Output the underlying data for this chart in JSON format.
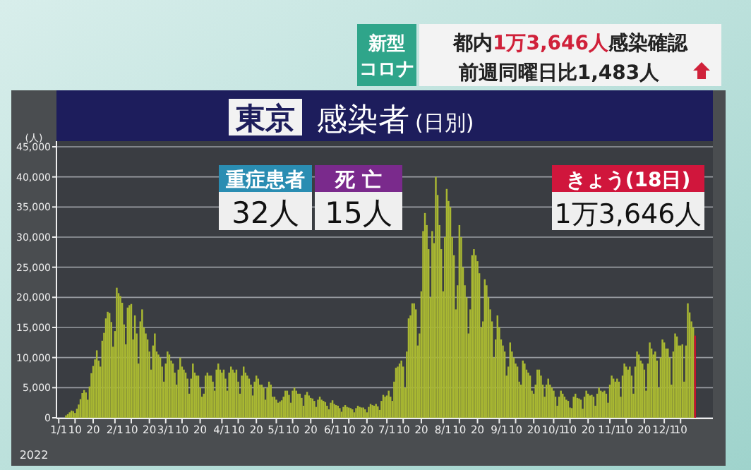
{
  "chart_data": {
    "type": "bar",
    "title": "東京 感染者 (日別)",
    "ylabel": "(人)",
    "xlabel": "2022",
    "grid": "y",
    "ylim": [
      0,
      45000
    ],
    "yticks": [
      0,
      {
        "value": 5000,
        "label": "5,000"
      },
      {
        "value": 10000,
        "label": "10,000"
      },
      {
        "value": 15000,
        "label": "15,000"
      },
      {
        "value": 20000,
        "label": "20,000"
      },
      {
        "value": 25000,
        "label": "25,000"
      },
      {
        "value": 30000,
        "label": "30,000"
      },
      {
        "value": 35000,
        "label": "35,000"
      },
      {
        "value": 40000,
        "label": "40,000"
      },
      {
        "value": 45000,
        "label": "45,000"
      }
    ],
    "annotations": [
      "新型",
      "コロナ",
      "都内1万3,646人感染確認",
      "前週同曜日比1,483人",
      "重症患者",
      "32人",
      "死 亡",
      "15人",
      "きょう(18日)",
      "1万3,646人"
    ],
    "categories": [
      "1/1",
      null,
      null,
      null,
      null,
      null,
      null,
      null,
      null,
      "10",
      null,
      null,
      null,
      null,
      null,
      null,
      null,
      null,
      null,
      "20",
      null,
      null,
      null,
      null,
      null,
      null,
      null,
      null,
      null,
      null,
      null,
      "2/1",
      null,
      null,
      null,
      null,
      null,
      null,
      null,
      null,
      "10",
      null,
      null,
      null,
      null,
      null,
      null,
      null,
      null,
      null,
      "20",
      null,
      null,
      null,
      null,
      null,
      null,
      null,
      null,
      "3/1",
      null,
      null,
      null,
      null,
      null,
      null,
      null,
      null,
      "10",
      null,
      null,
      null,
      null,
      null,
      null,
      null,
      null,
      null,
      "20",
      null,
      null,
      null,
      null,
      null,
      null,
      null,
      null,
      null,
      null,
      null,
      "4/1",
      null,
      null,
      null,
      null,
      null,
      null,
      null,
      null,
      "10",
      null,
      null,
      null,
      null,
      null,
      null,
      null,
      null,
      null,
      "20",
      null,
      null,
      null,
      null,
      null,
      null,
      null,
      null,
      null,
      null,
      "5/1",
      null,
      null,
      null,
      null,
      null,
      null,
      null,
      null,
      "10",
      null,
      null,
      null,
      null,
      null,
      null,
      null,
      null,
      null,
      "20",
      null,
      null,
      null,
      null,
      null,
      null,
      null,
      null,
      null,
      null,
      null,
      "6/1",
      null,
      null,
      null,
      null,
      null,
      null,
      null,
      null,
      "10",
      null,
      null,
      null,
      null,
      null,
      null,
      null,
      null,
      null,
      "20",
      null,
      null,
      null,
      null,
      null,
      null,
      null,
      null,
      null,
      null,
      "7/1",
      null,
      null,
      null,
      null,
      null,
      null,
      null,
      null,
      "10",
      null,
      null,
      null,
      null,
      null,
      null,
      null,
      null,
      null,
      "20",
      null,
      null,
      null,
      null,
      null,
      null,
      null,
      null,
      null,
      null,
      null,
      "8/1",
      null,
      null,
      null,
      null,
      null,
      null,
      null,
      null,
      "10",
      null,
      null,
      null,
      null,
      null,
      null,
      null,
      null,
      null,
      "20",
      null,
      null,
      null,
      null,
      null,
      null,
      null,
      null,
      null,
      null,
      null,
      "9/1",
      null,
      null,
      null,
      null,
      null,
      null,
      null,
      null,
      "10",
      null,
      null,
      null,
      null,
      null,
      null,
      null,
      null,
      null,
      "20",
      null,
      null,
      null,
      null,
      null,
      null,
      null,
      null,
      null,
      null,
      "10/1",
      null,
      null,
      null,
      null,
      null,
      null,
      null,
      null,
      "10",
      null,
      null,
      null,
      null,
      null,
      null,
      null,
      null,
      null,
      "20",
      null,
      null,
      null,
      null,
      null,
      null,
      null,
      null,
      null,
      null,
      null,
      "11/1",
      null,
      null,
      null,
      null,
      null,
      null,
      null,
      null,
      "10",
      null,
      null,
      null,
      null,
      null,
      null,
      null,
      null,
      null,
      "20",
      null,
      null,
      null,
      null,
      null,
      null,
      null,
      null,
      null,
      null,
      "12/1",
      null,
      null,
      null,
      null,
      null,
      null,
      null,
      null,
      "10",
      null,
      null,
      null,
      null,
      null,
      null,
      null,
      null
    ],
    "series": [
      {
        "color": "#a9b832",
        "values": [
          null,
          null,
          null,
          null,
          400,
          600,
          900,
          1200,
          1100,
          800,
          1500,
          2200,
          3100,
          4100,
          4600,
          4200,
          3000,
          5200,
          7400,
          8600,
          9700,
          11200,
          9500,
          8500,
          12800,
          14100,
          16500,
          17600,
          17400,
          15900,
          11800,
          14400,
          21600,
          20700,
          20200,
          19100,
          15500,
          12200,
          18300,
          18700,
          18900,
          13000,
          17000,
          14000,
          9000,
          16000,
          18000,
          15000,
          14000,
          13000,
          11000,
          8000,
          12000,
          14000,
          11000,
          10500,
          10000,
          8500,
          6000,
          9000,
          11000,
          10500,
          9500,
          9000,
          7500,
          5500,
          8000,
          10000,
          8500,
          8000,
          7500,
          6500,
          4000,
          6500,
          9000,
          7500,
          7000,
          7000,
          5000,
          3500,
          4000,
          7000,
          7500,
          7000,
          7000,
          6000,
          4500,
          8000,
          9000,
          8000,
          7500,
          8000,
          6500,
          4500,
          7500,
          8500,
          8000,
          7500,
          8000,
          6000,
          4000,
          7000,
          8500,
          7500,
          7000,
          6500,
          5500,
          3700,
          6000,
          7000,
          6500,
          5500,
          5500,
          5000,
          3000,
          5000,
          6000,
          5500,
          3500,
          3500,
          3000,
          2500,
          2700,
          2900,
          3500,
          4500,
          4500,
          3800,
          2500,
          4500,
          5000,
          4500,
          4000,
          4000,
          3300,
          2000,
          3800,
          4300,
          3700,
          3300,
          3200,
          2800,
          1800,
          3000,
          3500,
          3000,
          2800,
          2600,
          2000,
          1400,
          2500,
          2900,
          2300,
          2100,
          2000,
          1600,
          1000,
          1800,
          2100,
          1800,
          1700,
          1600,
          1400,
          900,
          1600,
          2000,
          1800,
          1700,
          1700,
          1400,
          900,
          1800,
          2300,
          2100,
          2000,
          2300,
          1900,
          1300,
          2800,
          3800,
          3500,
          3700,
          4500,
          3500,
          2800,
          6000,
          8300,
          8500,
          9000,
          9500,
          8500,
          5000,
          11000,
          16500,
          17000,
          19000,
          19000,
          18000,
          12000,
          14000,
          21000,
          31000,
          34000,
          32000,
          28000,
          20000,
          31000,
          29000,
          40000,
          37000,
          32000,
          28000,
          21000,
          30000,
          38000,
          36000,
          35000,
          30000,
          27000,
          18000,
          22000,
          32000,
          30000,
          25000,
          22000,
          20000,
          14000,
          18000,
          27000,
          28000,
          27000,
          26000,
          24000,
          15000,
          16000,
          23000,
          22000,
          20000,
          18000,
          16000,
          10000,
          13000,
          17000,
          15000,
          13000,
          12000,
          11000,
          7000,
          8500,
          12500,
          11000,
          10000,
          9000,
          8500,
          6000,
          5500,
          9500,
          9000,
          8000,
          7500,
          7000,
          4500,
          4000,
          5500,
          8000,
          8000,
          7000,
          5500,
          3500,
          5500,
          6500,
          5500,
          5000,
          4500,
          3500,
          2000,
          3500,
          4500,
          4000,
          3500,
          3000,
          2800,
          1700,
          1600,
          3500,
          4000,
          3300,
          3200,
          3000,
          1500,
          3500,
          4500,
          4000,
          3700,
          3800,
          3500,
          2000,
          4000,
          5000,
          4500,
          4300,
          4500,
          4000,
          2500,
          5500,
          7000,
          6500,
          6000,
          6500,
          6000,
          3500,
          7000,
          9000,
          8500,
          8000,
          8500,
          7000,
          4000,
          8500,
          11000,
          10500,
          9500,
          9000,
          8000,
          4500,
          9000,
          12500,
          11500,
          10500,
          11000,
          9500,
          5000,
          10000,
          13000,
          12500,
          11500,
          11500,
          10000,
          5500,
          11000,
          14000,
          13500,
          12000,
          12000,
          12200,
          6000,
          12000,
          19000,
          17500,
          16000,
          15000,
          null
        ]
      },
      {
        "color": "#c8102e",
        "values": [
          null,
          null,
          null,
          null,
          null,
          null,
          null,
          null,
          null,
          null,
          null,
          null,
          null,
          null,
          null,
          null,
          null,
          null,
          null,
          null,
          null,
          null,
          null,
          null,
          null,
          null,
          null,
          null,
          null,
          null,
          null,
          null,
          null,
          null,
          null,
          null,
          null,
          null,
          null,
          null,
          null,
          null,
          null,
          null,
          null,
          null,
          null,
          null,
          null,
          null,
          null,
          null,
          null,
          null,
          null,
          null,
          null,
          null,
          null,
          null,
          null,
          null,
          null,
          null,
          null,
          null,
          null,
          null,
          null,
          null,
          null,
          null,
          null,
          null,
          null,
          null,
          null,
          null,
          null,
          null,
          null,
          null,
          null,
          null,
          null,
          null,
          null,
          null,
          null,
          null,
          null,
          null,
          null,
          null,
          null,
          null,
          null,
          null,
          null,
          null,
          null,
          null,
          null,
          null,
          null,
          null,
          null,
          null,
          null,
          null,
          null,
          null,
          null,
          null,
          null,
          null,
          null,
          null,
          null,
          null,
          null,
          null,
          null,
          null,
          null,
          null,
          null,
          null,
          null,
          null,
          null,
          null,
          null,
          null,
          null,
          null,
          null,
          null,
          null,
          null,
          null,
          null,
          null,
          null,
          null,
          null,
          null,
          null,
          null,
          null,
          null,
          null,
          null,
          null,
          null,
          null,
          null,
          null,
          null,
          null,
          null,
          null,
          null,
          null,
          null,
          null,
          null,
          null,
          null,
          null,
          null,
          null,
          null,
          null,
          null,
          null,
          null,
          null,
          null,
          null,
          null,
          null,
          null,
          null,
          null,
          null,
          null,
          null,
          null,
          null,
          null,
          null,
          null,
          null,
          null,
          null,
          null,
          null,
          null,
          null,
          null,
          null,
          null,
          null,
          null,
          null,
          null,
          null,
          null,
          null,
          null,
          null,
          null,
          null,
          null,
          null,
          null,
          null,
          null,
          null,
          null,
          null,
          null,
          null,
          null,
          null,
          null,
          null,
          null,
          null,
          null,
          null,
          null,
          null,
          null,
          null,
          null,
          null,
          null,
          null,
          null,
          null,
          null,
          null,
          null,
          null,
          null,
          null,
          null,
          null,
          null,
          null,
          null,
          null,
          null,
          null,
          null,
          null,
          null,
          null,
          null,
          null,
          null,
          null,
          null,
          null,
          null,
          null,
          null,
          null,
          null,
          null,
          null,
          null,
          null,
          null,
          null,
          null,
          null,
          null,
          null,
          null,
          null,
          null,
          null,
          null,
          null,
          null,
          null,
          null,
          null,
          null,
          null,
          null,
          null,
          null,
          null,
          null,
          null,
          null,
          null,
          null,
          null,
          null,
          null,
          null,
          null,
          null,
          null,
          null,
          null,
          null,
          null,
          null,
          null,
          null,
          null,
          null,
          null,
          null,
          null,
          null,
          null,
          null,
          null,
          null,
          null,
          null,
          null,
          null,
          null,
          null,
          null,
          null,
          null,
          null,
          null,
          null,
          null,
          null,
          null,
          null,
          null,
          null,
          null,
          null,
          null,
          null,
          null,
          null,
          null,
          13646
        ]
      }
    ]
  }
}
